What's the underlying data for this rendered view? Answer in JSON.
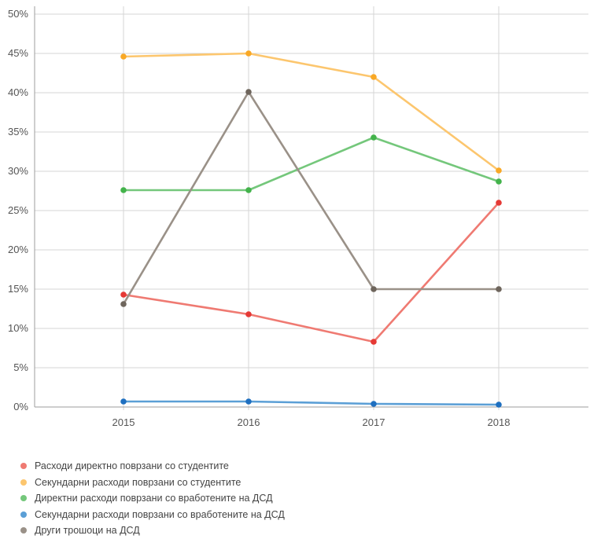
{
  "chart_data": {
    "type": "line",
    "x": [
      "2015",
      "2016",
      "2017",
      "2018"
    ],
    "y_ticks": [
      "0%",
      "5%",
      "10%",
      "15%",
      "20%",
      "25%",
      "30%",
      "35%",
      "40%",
      "45%",
      "50%"
    ],
    "ylim": [
      0,
      50
    ],
    "grid": true,
    "legend_position": "bottom",
    "series": [
      {
        "name": "Расходи директно поврзани со студентите",
        "values": [
          14.3,
          11.8,
          8.3,
          26.0
        ],
        "line_color": "#ef7a72",
        "point_color": "#e53935"
      },
      {
        "name": "Секундарни расходи поврзани со студентите",
        "values": [
          44.6,
          45.0,
          42.0,
          30.1
        ],
        "line_color": "#fcc66e",
        "point_color": "#f9a825"
      },
      {
        "name": "Директни расходи поврзани со вработените на ДСД",
        "values": [
          27.6,
          27.6,
          34.3,
          28.7
        ],
        "line_color": "#74c77b",
        "point_color": "#43b34b"
      },
      {
        "name": "Секундарни расходи поврзани со вработените на ДСД",
        "values": [
          0.7,
          0.7,
          0.4,
          0.3
        ],
        "line_color": "#5b9fd6",
        "point_color": "#1e6fc0"
      },
      {
        "name": "Други трошоци на ДСД",
        "values": [
          13.1,
          40.1,
          15.0,
          15.0
        ],
        "line_color": "#9a9188",
        "point_color": "#6e655c"
      }
    ]
  }
}
